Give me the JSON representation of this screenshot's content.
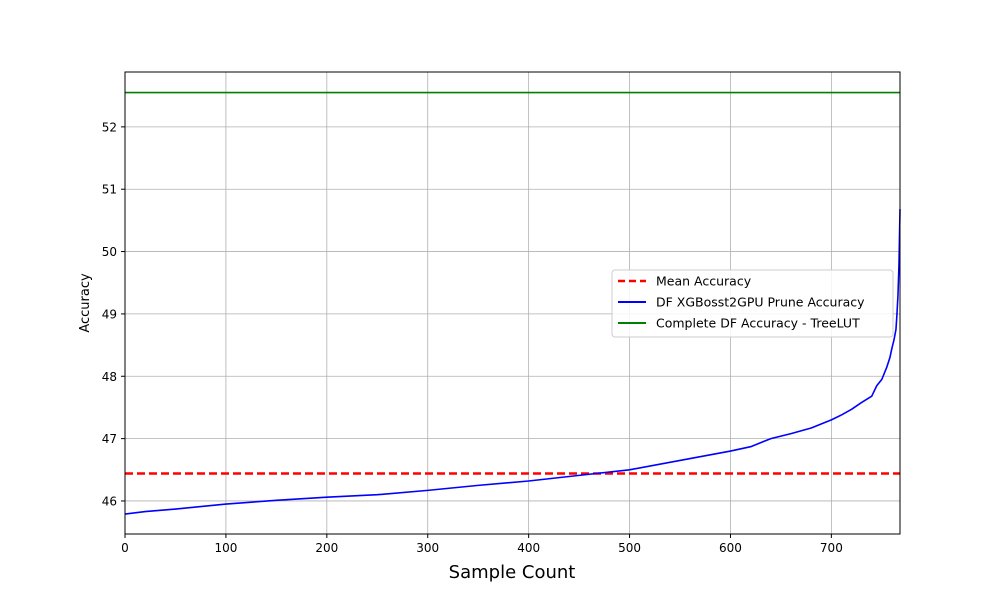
{
  "chart_data": {
    "type": "line",
    "title": "",
    "xlabel": "Sample Count",
    "ylabel": "Accuracy",
    "xlim": [
      0,
      768
    ],
    "ylim": [
      45.47,
      52.88
    ],
    "xticks": [
      0,
      100,
      200,
      300,
      400,
      500,
      600,
      700
    ],
    "yticks": [
      46,
      47,
      48,
      49,
      50,
      51,
      52
    ],
    "grid": true,
    "legend_position": "center-right",
    "series": [
      {
        "name": "Mean Accuracy",
        "kind": "hline",
        "style": "dashed",
        "color": "#ff0000",
        "y": 46.44
      },
      {
        "name": "DF XGBosst2GPU Prune Accuracy",
        "kind": "line",
        "style": "solid",
        "color": "#0000ff",
        "x": [
          0,
          20,
          50,
          100,
          150,
          200,
          250,
          300,
          350,
          400,
          450,
          500,
          550,
          600,
          620,
          640,
          660,
          680,
          700,
          710,
          720,
          730,
          740,
          745,
          750,
          755,
          758,
          760,
          762,
          764,
          765,
          766,
          767,
          768
        ],
        "y": [
          45.79,
          45.83,
          45.87,
          45.95,
          46.01,
          46.06,
          46.1,
          46.17,
          46.25,
          46.32,
          46.41,
          46.5,
          46.65,
          46.8,
          46.87,
          47.0,
          47.08,
          47.17,
          47.3,
          47.38,
          47.47,
          47.58,
          47.68,
          47.85,
          47.95,
          48.15,
          48.3,
          48.45,
          48.58,
          48.75,
          49.0,
          49.3,
          49.8,
          50.68
        ]
      },
      {
        "name": "Complete DF Accuracy - TreeLUT",
        "kind": "hline",
        "style": "solid",
        "color": "#008000",
        "y": 52.55
      }
    ]
  }
}
